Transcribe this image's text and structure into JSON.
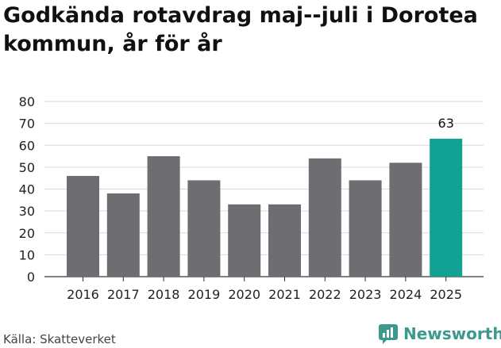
{
  "title": "Godkända rotavdrag maj--juli i Dorotea kommun, år för år",
  "source": "Källa: Skatteverket",
  "brand": {
    "name": "Newsworthy",
    "icon": "newsworthy-logo-icon"
  },
  "colors": {
    "bar": "#6e6d72",
    "highlight": "#12a293",
    "grid": "#d9d9d9",
    "brand": "#3b9a8c"
  },
  "chart_data": {
    "type": "bar",
    "title": "Godkända rotavdrag maj--juli i Dorotea kommun, år för år",
    "xlabel": "",
    "ylabel": "",
    "categories": [
      "2016",
      "2017",
      "2018",
      "2019",
      "2020",
      "2021",
      "2022",
      "2023",
      "2024",
      "2025"
    ],
    "values": [
      46,
      38,
      55,
      44,
      33,
      33,
      54,
      44,
      52,
      63
    ],
    "highlight_index": 9,
    "data_labels": [
      {
        "index": 9,
        "text": "63"
      }
    ],
    "ylim": [
      0,
      80
    ],
    "yticks": [
      "0",
      "10",
      "20",
      "30",
      "40",
      "50",
      "60",
      "70",
      "80"
    ],
    "grid": true,
    "legend": "none"
  }
}
